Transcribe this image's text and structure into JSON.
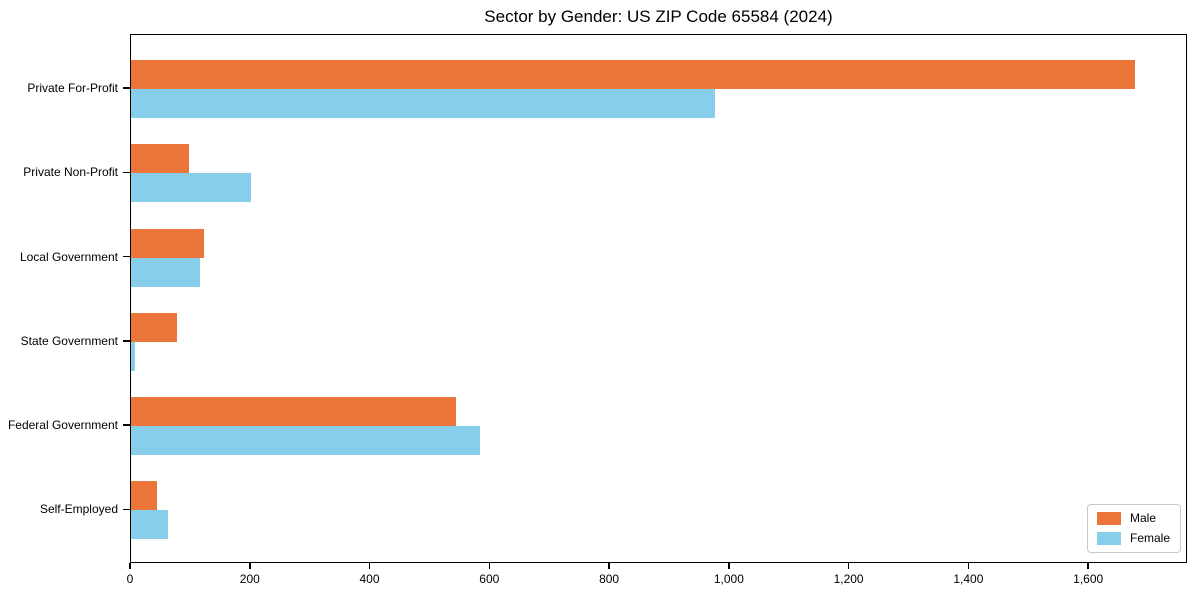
{
  "title": "Sector by Gender: US ZIP Code 65584 (2024)",
  "chart_data": {
    "type": "bar",
    "orientation": "horizontal",
    "title": "Sector by Gender: US ZIP Code 65584 (2024)",
    "xlabel": "",
    "ylabel": "",
    "categories": [
      "Private For-Profit",
      "Private Non-Profit",
      "Local Government",
      "State Government",
      "Federal Government",
      "Self-Employed"
    ],
    "series": [
      {
        "name": "Male",
        "color": "#ec7639",
        "values": [
          1677,
          96,
          122,
          76,
          543,
          44
        ]
      },
      {
        "name": "Female",
        "color": "#87ceeb",
        "values": [
          975,
          201,
          115,
          7,
          582,
          61
        ]
      }
    ],
    "xlim": [
      0,
      1765
    ],
    "xticks": [
      0,
      200,
      400,
      600,
      800,
      1000,
      1200,
      1400,
      1600
    ],
    "xtick_labels": [
      "0",
      "200",
      "400",
      "600",
      "800",
      "1,000",
      "1,200",
      "1,400",
      "1,600"
    ],
    "grid": false,
    "legend_position": "lower right"
  },
  "legend": {
    "items": [
      {
        "label": "Male",
        "color": "#ec7639"
      },
      {
        "label": "Female",
        "color": "#87ceeb"
      }
    ]
  },
  "colors": {
    "male": "#ec7639",
    "female": "#87ceeb",
    "axis": "#000000",
    "legend_border": "#c9c9c9",
    "background": "#ffffff"
  }
}
